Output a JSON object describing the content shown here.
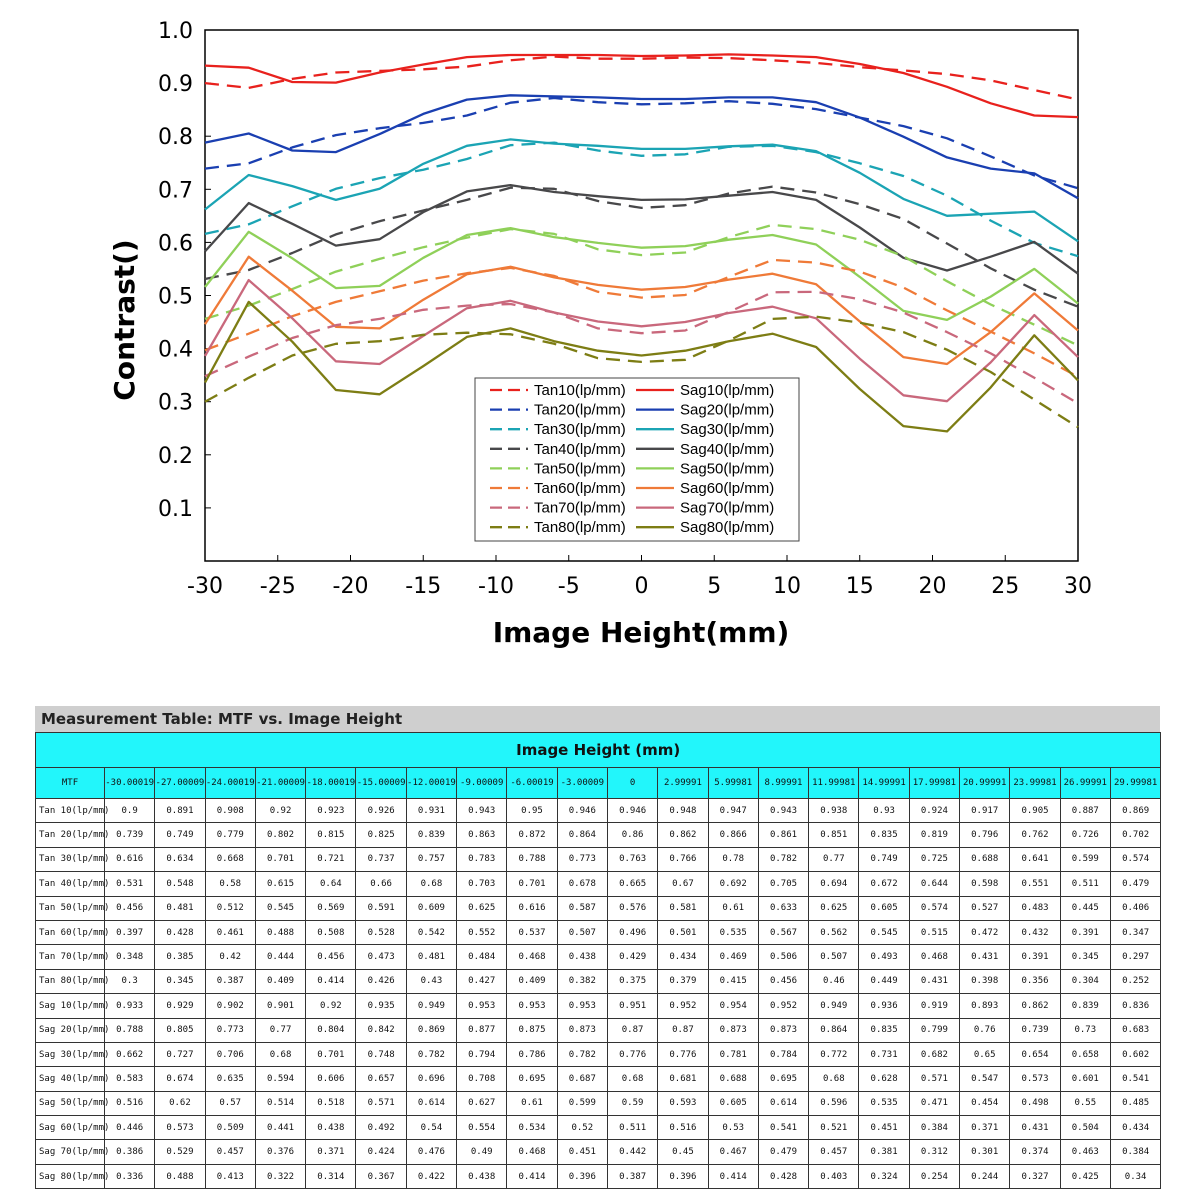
{
  "chart_data": {
    "type": "line",
    "title": "",
    "xlabel": "Image Height(mm)",
    "ylabel": "Contrast()",
    "xlim": [
      -30,
      30
    ],
    "ylim": [
      0,
      1.0
    ],
    "x_ticks": [
      "-30",
      "-25",
      "-20",
      "-15",
      "-10",
      "-5",
      "0",
      "5",
      "10",
      "15",
      "20",
      "25",
      "30"
    ],
    "y_ticks": [
      "0.1",
      "0.2",
      "0.3",
      "0.4",
      "0.5",
      "0.6",
      "0.7",
      "0.8",
      "0.9",
      "1.0"
    ],
    "grid": false,
    "legend_position": "bottom-center",
    "x": [
      -30,
      -27,
      -24,
      -21,
      -18,
      -15,
      -12,
      -9,
      -6,
      -3,
      0,
      3,
      6,
      9,
      12,
      15,
      18,
      21,
      24,
      27,
      30
    ],
    "series": [
      {
        "name": "Tan10(lp/mm)",
        "color": "#e8211d",
        "style": "dashed",
        "values": [
          0.9,
          0.891,
          0.908,
          0.92,
          0.923,
          0.926,
          0.931,
          0.943,
          0.95,
          0.946,
          0.946,
          0.948,
          0.947,
          0.943,
          0.938,
          0.93,
          0.924,
          0.917,
          0.905,
          0.887,
          0.869
        ]
      },
      {
        "name": "Sag10(lp/mm)",
        "color": "#e8211d",
        "style": "solid",
        "values": [
          0.933,
          0.929,
          0.902,
          0.901,
          0.92,
          0.935,
          0.949,
          0.953,
          0.953,
          0.953,
          0.951,
          0.952,
          0.954,
          0.952,
          0.949,
          0.936,
          0.919,
          0.893,
          0.862,
          0.839,
          0.836
        ]
      },
      {
        "name": "Tan20(lp/mm)",
        "color": "#1a3fb1",
        "style": "dashed",
        "values": [
          0.739,
          0.749,
          0.779,
          0.802,
          0.815,
          0.825,
          0.839,
          0.863,
          0.872,
          0.864,
          0.86,
          0.862,
          0.866,
          0.861,
          0.851,
          0.835,
          0.819,
          0.796,
          0.762,
          0.726,
          0.702
        ]
      },
      {
        "name": "Sag20(lp/mm)",
        "color": "#1a3fb1",
        "style": "solid",
        "values": [
          0.788,
          0.805,
          0.773,
          0.77,
          0.804,
          0.842,
          0.869,
          0.877,
          0.875,
          0.873,
          0.87,
          0.87,
          0.873,
          0.873,
          0.864,
          0.835,
          0.799,
          0.76,
          0.739,
          0.73,
          0.683
        ]
      },
      {
        "name": "Tan30(lp/mm)",
        "color": "#1ba4b4",
        "style": "dashed",
        "values": [
          0.616,
          0.634,
          0.668,
          0.701,
          0.721,
          0.737,
          0.757,
          0.783,
          0.788,
          0.773,
          0.763,
          0.766,
          0.78,
          0.782,
          0.77,
          0.749,
          0.725,
          0.688,
          0.641,
          0.599,
          0.574
        ]
      },
      {
        "name": "Sag30(lp/mm)",
        "color": "#1ba4b4",
        "style": "solid",
        "values": [
          0.662,
          0.727,
          0.706,
          0.68,
          0.701,
          0.748,
          0.782,
          0.794,
          0.786,
          0.782,
          0.776,
          0.776,
          0.781,
          0.784,
          0.772,
          0.731,
          0.682,
          0.65,
          0.654,
          0.658,
          0.602
        ]
      },
      {
        "name": "Tan40(lp/mm)",
        "color": "#48484a",
        "style": "dashed",
        "values": [
          0.531,
          0.548,
          0.58,
          0.615,
          0.64,
          0.66,
          0.68,
          0.703,
          0.701,
          0.678,
          0.665,
          0.67,
          0.692,
          0.705,
          0.694,
          0.672,
          0.644,
          0.598,
          0.551,
          0.511,
          0.479
        ]
      },
      {
        "name": "Sag40(lp/mm)",
        "color": "#48484a",
        "style": "solid",
        "values": [
          0.583,
          0.674,
          0.635,
          0.594,
          0.606,
          0.657,
          0.696,
          0.708,
          0.695,
          0.687,
          0.68,
          0.681,
          0.688,
          0.695,
          0.68,
          0.628,
          0.571,
          0.547,
          0.573,
          0.601,
          0.541
        ]
      },
      {
        "name": "Tan50(lp/mm)",
        "color": "#8fd059",
        "style": "dashed",
        "values": [
          0.456,
          0.481,
          0.512,
          0.545,
          0.569,
          0.591,
          0.609,
          0.625,
          0.616,
          0.587,
          0.576,
          0.581,
          0.61,
          0.633,
          0.625,
          0.605,
          0.574,
          0.527,
          0.483,
          0.445,
          0.406
        ]
      },
      {
        "name": "Sag50(lp/mm)",
        "color": "#8fd059",
        "style": "solid",
        "values": [
          0.516,
          0.62,
          0.57,
          0.514,
          0.518,
          0.571,
          0.614,
          0.627,
          0.61,
          0.599,
          0.59,
          0.593,
          0.605,
          0.614,
          0.596,
          0.535,
          0.471,
          0.454,
          0.498,
          0.55,
          0.485
        ]
      },
      {
        "name": "Tan60(lp/mm)",
        "color": "#ef7a38",
        "style": "dashed",
        "values": [
          0.397,
          0.428,
          0.461,
          0.488,
          0.508,
          0.528,
          0.542,
          0.552,
          0.537,
          0.507,
          0.496,
          0.501,
          0.535,
          0.567,
          0.562,
          0.545,
          0.515,
          0.472,
          0.432,
          0.391,
          0.347
        ]
      },
      {
        "name": "Sag60(lp/mm)",
        "color": "#ef7a38",
        "style": "solid",
        "values": [
          0.446,
          0.573,
          0.509,
          0.441,
          0.438,
          0.492,
          0.54,
          0.554,
          0.534,
          0.52,
          0.511,
          0.516,
          0.53,
          0.541,
          0.521,
          0.451,
          0.384,
          0.371,
          0.431,
          0.504,
          0.434
        ]
      },
      {
        "name": "Tan70(lp/mm)",
        "color": "#c9687c",
        "style": "dashed",
        "values": [
          0.348,
          0.385,
          0.42,
          0.444,
          0.456,
          0.473,
          0.481,
          0.484,
          0.468,
          0.438,
          0.429,
          0.434,
          0.469,
          0.506,
          0.507,
          0.493,
          0.468,
          0.431,
          0.391,
          0.345,
          0.297
        ]
      },
      {
        "name": "Sag70(lp/mm)",
        "color": "#c9687c",
        "style": "solid",
        "values": [
          0.386,
          0.529,
          0.457,
          0.376,
          0.371,
          0.424,
          0.476,
          0.49,
          0.468,
          0.451,
          0.442,
          0.45,
          0.467,
          0.479,
          0.457,
          0.381,
          0.312,
          0.301,
          0.374,
          0.463,
          0.384
        ]
      },
      {
        "name": "Tan80(lp/mm)",
        "color": "#7d7d14",
        "style": "dashed",
        "values": [
          0.3,
          0.345,
          0.387,
          0.409,
          0.414,
          0.426,
          0.43,
          0.427,
          0.409,
          0.382,
          0.375,
          0.379,
          0.415,
          0.456,
          0.46,
          0.449,
          0.431,
          0.398,
          0.356,
          0.304,
          0.252
        ]
      },
      {
        "name": "Sag80(lp/mm)",
        "color": "#7d7d14",
        "style": "solid",
        "values": [
          0.336,
          0.488,
          0.413,
          0.322,
          0.314,
          0.367,
          0.422,
          0.438,
          0.414,
          0.396,
          0.387,
          0.396,
          0.414,
          0.428,
          0.403,
          0.324,
          0.254,
          0.244,
          0.327,
          0.425,
          0.34
        ]
      }
    ]
  },
  "table": {
    "title": "Measurement Table: MTF vs. Image Height",
    "band_label": "Image Height (mm)",
    "corner_label": "MTF",
    "columns": [
      "-30.00019",
      "-27.00009",
      "-24.00019",
      "-21.00009",
      "-18.00019",
      "-15.00009",
      "-12.00019",
      "-9.00009",
      "-6.00019",
      "-3.00009",
      "0",
      "2.99991",
      "5.99981",
      "8.99991",
      "11.99981",
      "14.99991",
      "17.99981",
      "20.99991",
      "23.99981",
      "26.99991",
      "29.99981"
    ],
    "rows": [
      {
        "label": "Tan 10(lp/mm)",
        "values": [
          "0.9",
          "0.891",
          "0.908",
          "0.92",
          "0.923",
          "0.926",
          "0.931",
          "0.943",
          "0.95",
          "0.946",
          "0.946",
          "0.948",
          "0.947",
          "0.943",
          "0.938",
          "0.93",
          "0.924",
          "0.917",
          "0.905",
          "0.887",
          "0.869"
        ]
      },
      {
        "label": "Tan 20(lp/mm)",
        "values": [
          "0.739",
          "0.749",
          "0.779",
          "0.802",
          "0.815",
          "0.825",
          "0.839",
          "0.863",
          "0.872",
          "0.864",
          "0.86",
          "0.862",
          "0.866",
          "0.861",
          "0.851",
          "0.835",
          "0.819",
          "0.796",
          "0.762",
          "0.726",
          "0.702"
        ]
      },
      {
        "label": "Tan 30(lp/mm)",
        "values": [
          "0.616",
          "0.634",
          "0.668",
          "0.701",
          "0.721",
          "0.737",
          "0.757",
          "0.783",
          "0.788",
          "0.773",
          "0.763",
          "0.766",
          "0.78",
          "0.782",
          "0.77",
          "0.749",
          "0.725",
          "0.688",
          "0.641",
          "0.599",
          "0.574"
        ]
      },
      {
        "label": "Tan 40(lp/mm)",
        "values": [
          "0.531",
          "0.548",
          "0.58",
          "0.615",
          "0.64",
          "0.66",
          "0.68",
          "0.703",
          "0.701",
          "0.678",
          "0.665",
          "0.67",
          "0.692",
          "0.705",
          "0.694",
          "0.672",
          "0.644",
          "0.598",
          "0.551",
          "0.511",
          "0.479"
        ]
      },
      {
        "label": "Tan 50(lp/mm)",
        "values": [
          "0.456",
          "0.481",
          "0.512",
          "0.545",
          "0.569",
          "0.591",
          "0.609",
          "0.625",
          "0.616",
          "0.587",
          "0.576",
          "0.581",
          "0.61",
          "0.633",
          "0.625",
          "0.605",
          "0.574",
          "0.527",
          "0.483",
          "0.445",
          "0.406"
        ]
      },
      {
        "label": "Tan 60(lp/mm)",
        "values": [
          "0.397",
          "0.428",
          "0.461",
          "0.488",
          "0.508",
          "0.528",
          "0.542",
          "0.552",
          "0.537",
          "0.507",
          "0.496",
          "0.501",
          "0.535",
          "0.567",
          "0.562",
          "0.545",
          "0.515",
          "0.472",
          "0.432",
          "0.391",
          "0.347"
        ]
      },
      {
        "label": "Tan 70(lp/mm)",
        "values": [
          "0.348",
          "0.385",
          "0.42",
          "0.444",
          "0.456",
          "0.473",
          "0.481",
          "0.484",
          "0.468",
          "0.438",
          "0.429",
          "0.434",
          "0.469",
          "0.506",
          "0.507",
          "0.493",
          "0.468",
          "0.431",
          "0.391",
          "0.345",
          "0.297"
        ]
      },
      {
        "label": "Tan 80(lp/mm)",
        "values": [
          "0.3",
          "0.345",
          "0.387",
          "0.409",
          "0.414",
          "0.426",
          "0.43",
          "0.427",
          "0.409",
          "0.382",
          "0.375",
          "0.379",
          "0.415",
          "0.456",
          "0.46",
          "0.449",
          "0.431",
          "0.398",
          "0.356",
          "0.304",
          "0.252"
        ]
      },
      {
        "label": "Sag 10(lp/mm)",
        "values": [
          "0.933",
          "0.929",
          "0.902",
          "0.901",
          "0.92",
          "0.935",
          "0.949",
          "0.953",
          "0.953",
          "0.953",
          "0.951",
          "0.952",
          "0.954",
          "0.952",
          "0.949",
          "0.936",
          "0.919",
          "0.893",
          "0.862",
          "0.839",
          "0.836"
        ]
      },
      {
        "label": "Sag 20(lp/mm)",
        "values": [
          "0.788",
          "0.805",
          "0.773",
          "0.77",
          "0.804",
          "0.842",
          "0.869",
          "0.877",
          "0.875",
          "0.873",
          "0.87",
          "0.87",
          "0.873",
          "0.873",
          "0.864",
          "0.835",
          "0.799",
          "0.76",
          "0.739",
          "0.73",
          "0.683"
        ]
      },
      {
        "label": "Sag 30(lp/mm)",
        "values": [
          "0.662",
          "0.727",
          "0.706",
          "0.68",
          "0.701",
          "0.748",
          "0.782",
          "0.794",
          "0.786",
          "0.782",
          "0.776",
          "0.776",
          "0.781",
          "0.784",
          "0.772",
          "0.731",
          "0.682",
          "0.65",
          "0.654",
          "0.658",
          "0.602"
        ]
      },
      {
        "label": "Sag 40(lp/mm)",
        "values": [
          "0.583",
          "0.674",
          "0.635",
          "0.594",
          "0.606",
          "0.657",
          "0.696",
          "0.708",
          "0.695",
          "0.687",
          "0.68",
          "0.681",
          "0.688",
          "0.695",
          "0.68",
          "0.628",
          "0.571",
          "0.547",
          "0.573",
          "0.601",
          "0.541"
        ]
      },
      {
        "label": "Sag 50(lp/mm)",
        "values": [
          "0.516",
          "0.62",
          "0.57",
          "0.514",
          "0.518",
          "0.571",
          "0.614",
          "0.627",
          "0.61",
          "0.599",
          "0.59",
          "0.593",
          "0.605",
          "0.614",
          "0.596",
          "0.535",
          "0.471",
          "0.454",
          "0.498",
          "0.55",
          "0.485"
        ]
      },
      {
        "label": "Sag 60(lp/mm)",
        "values": [
          "0.446",
          "0.573",
          "0.509",
          "0.441",
          "0.438",
          "0.492",
          "0.54",
          "0.554",
          "0.534",
          "0.52",
          "0.511",
          "0.516",
          "0.53",
          "0.541",
          "0.521",
          "0.451",
          "0.384",
          "0.371",
          "0.431",
          "0.504",
          "0.434"
        ]
      },
      {
        "label": "Sag 70(lp/mm)",
        "values": [
          "0.386",
          "0.529",
          "0.457",
          "0.376",
          "0.371",
          "0.424",
          "0.476",
          "0.49",
          "0.468",
          "0.451",
          "0.442",
          "0.45",
          "0.467",
          "0.479",
          "0.457",
          "0.381",
          "0.312",
          "0.301",
          "0.374",
          "0.463",
          "0.384"
        ]
      },
      {
        "label": "Sag 80(lp/mm)",
        "values": [
          "0.336",
          "0.488",
          "0.413",
          "0.322",
          "0.314",
          "0.367",
          "0.422",
          "0.438",
          "0.414",
          "0.396",
          "0.387",
          "0.396",
          "0.414",
          "0.428",
          "0.403",
          "0.324",
          "0.254",
          "0.244",
          "0.327",
          "0.425",
          "0.34"
        ]
      }
    ]
  }
}
